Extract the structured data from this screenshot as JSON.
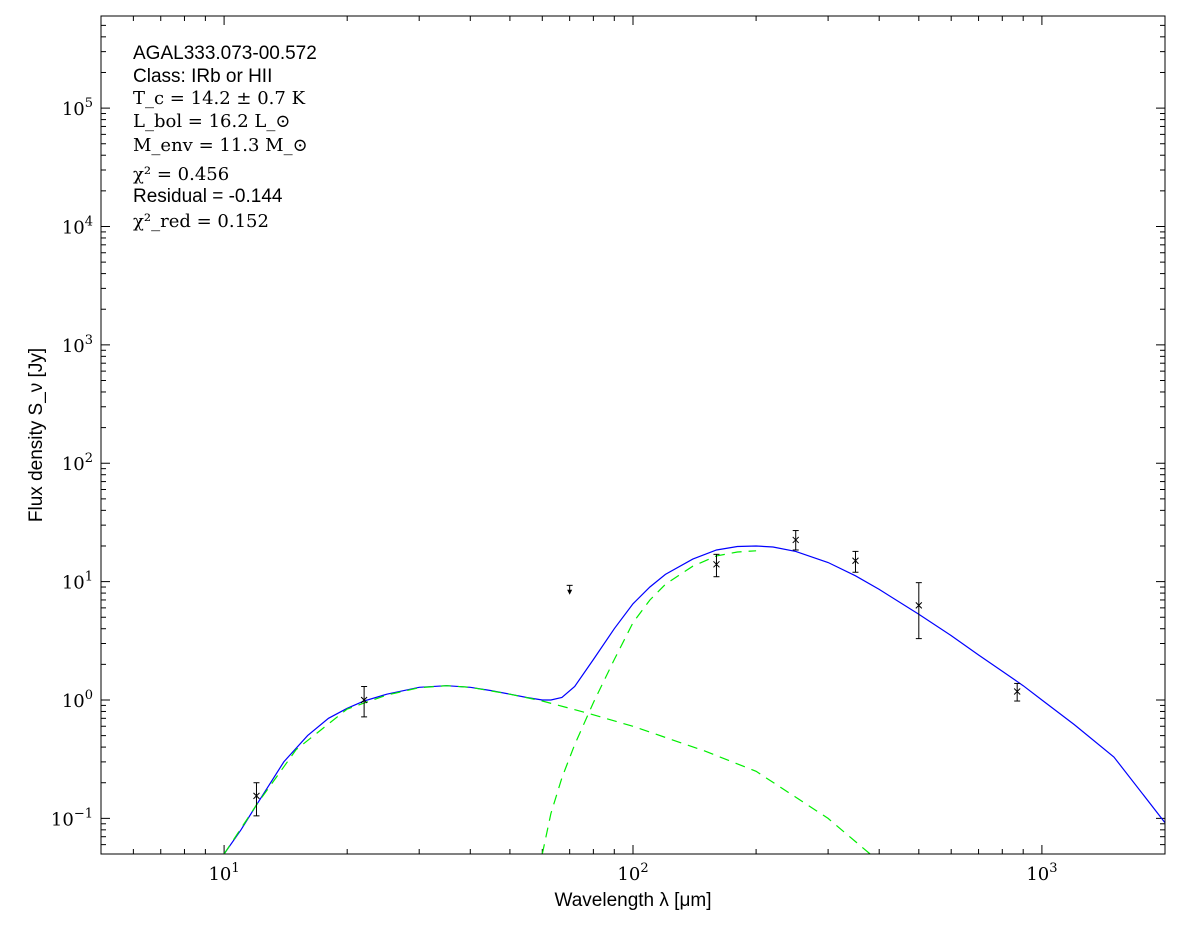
{
  "chart_data": {
    "type": "line",
    "xlabel": "Wavelength λ [μm]",
    "ylabel": "Flux density S_ν [Jy]",
    "xscale": "log",
    "yscale": "log",
    "xlim": [
      5,
      2000
    ],
    "ylim": [
      0.05,
      600000
    ],
    "xticks": [
      {
        "value": 10,
        "label": "10^1"
      },
      {
        "value": 100,
        "label": "10^2"
      },
      {
        "value": 1000,
        "label": "10^3"
      }
    ],
    "yticks": [
      {
        "value": 0.1,
        "label": "10^-1"
      },
      {
        "value": 1,
        "label": "10^0"
      },
      {
        "value": 10,
        "label": "10^1"
      },
      {
        "value": 100,
        "label": "10^2"
      },
      {
        "value": 1000,
        "label": "10^3"
      },
      {
        "value": 10000,
        "label": "10^4"
      },
      {
        "value": 100000,
        "label": "10^5"
      }
    ],
    "grid": false,
    "annotations": {
      "source": "AGAL333.073-00.572",
      "class_line": "Class: IRb or HII",
      "tc_line": "T_c = 14.2 ± 0.7 K",
      "lbol_line": "L_bol = 16.2 L_⊙",
      "menv_line": "M_env = 11.3 M_⊙",
      "chi2_line": "χ² = 0.456",
      "residual_line": "Residual = -0.144",
      "chi2red_line": "χ²_red = 0.152"
    },
    "series": [
      {
        "kind": "points",
        "color": "#000000",
        "points": [
          {
            "x": 12,
            "y": 0.155,
            "ylo": 0.105,
            "yhi": 0.2
          },
          {
            "x": 22,
            "y": 1.0,
            "ylo": 0.72,
            "yhi": 1.3
          },
          {
            "x": 160,
            "y": 14.0,
            "ylo": 11.0,
            "yhi": 17.0
          },
          {
            "x": 250,
            "y": 22.5,
            "ylo": 18.5,
            "yhi": 27.0
          },
          {
            "x": 350,
            "y": 15.0,
            "ylo": 12.0,
            "yhi": 18.0
          },
          {
            "x": 500,
            "y": 6.3,
            "ylo": 3.3,
            "yhi": 9.8
          },
          {
            "x": 870,
            "y": 1.18,
            "ylo": 0.98,
            "yhi": 1.38
          }
        ]
      },
      {
        "kind": "upper-limit",
        "color": "#000000",
        "points": [
          {
            "x": 70,
            "y": 9.3,
            "ytip": 7.9
          }
        ]
      },
      {
        "kind": "curve",
        "style": "solid",
        "color": "#0000ff",
        "x": [
          10,
          11,
          12,
          14,
          16,
          18,
          20,
          22,
          25,
          30,
          35,
          40,
          45,
          50,
          55,
          60,
          63,
          67,
          72,
          80,
          90,
          100,
          110,
          120,
          140,
          160,
          180,
          200,
          220,
          250,
          300,
          350,
          400,
          500,
          600,
          700,
          800,
          900,
          1000,
          1200,
          1500,
          2000
        ],
        "y": [
          0.05,
          0.08,
          0.13,
          0.3,
          0.5,
          0.7,
          0.85,
          0.98,
          1.12,
          1.28,
          1.32,
          1.28,
          1.2,
          1.12,
          1.05,
          1.0,
          1.0,
          1.05,
          1.3,
          2.2,
          4.0,
          6.5,
          9.0,
          11.5,
          15.5,
          18.5,
          19.8,
          20.0,
          19.6,
          18.0,
          14.5,
          11.2,
          8.6,
          5.3,
          3.5,
          2.4,
          1.75,
          1.32,
          1.0,
          0.62,
          0.33,
          0.092
        ]
      },
      {
        "kind": "curve",
        "style": "dashed",
        "color": "#00ee00",
        "x": [
          10,
          12,
          15,
          20,
          25,
          30,
          35,
          40,
          50,
          60,
          70,
          80,
          100,
          150,
          200,
          300,
          380
        ],
        "y": [
          0.05,
          0.13,
          0.38,
          0.84,
          1.1,
          1.27,
          1.32,
          1.28,
          1.12,
          0.98,
          0.85,
          0.75,
          0.6,
          0.37,
          0.25,
          0.1,
          0.05
        ]
      },
      {
        "kind": "curve",
        "style": "dashed",
        "color": "#00ee00",
        "x": [
          60,
          63,
          67,
          72,
          80,
          90,
          100,
          110,
          120,
          140,
          160,
          180,
          200
        ],
        "y": [
          0.05,
          0.11,
          0.22,
          0.42,
          0.95,
          2.2,
          4.5,
          7.0,
          9.5,
          13.5,
          16.5,
          17.8,
          18.2
        ]
      }
    ]
  }
}
